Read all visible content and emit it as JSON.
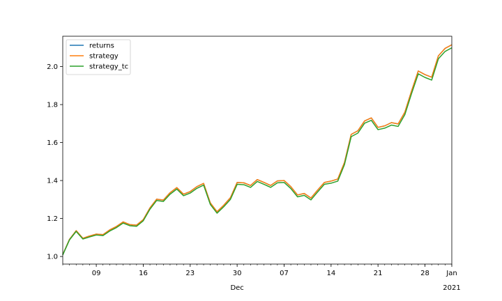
{
  "chart_data": {
    "type": "line",
    "title": "",
    "xlabel": "",
    "ylabel": "",
    "x_start": "2020-11-04",
    "x_end": "2021-01-01",
    "xlim": [
      "2020-11-04",
      "2021-01-01"
    ],
    "ylim": [
      0.96,
      2.16
    ],
    "grid": false,
    "legend_position": "top-left",
    "x_ticks": [
      {
        "date": "2020-11-09",
        "label": "09",
        "sublabel": ""
      },
      {
        "date": "2020-11-16",
        "label": "16",
        "sublabel": ""
      },
      {
        "date": "2020-11-23",
        "label": "23",
        "sublabel": ""
      },
      {
        "date": "2020-11-30",
        "label": "30",
        "sublabel": "Dec"
      },
      {
        "date": "2020-12-07",
        "label": "07",
        "sublabel": ""
      },
      {
        "date": "2020-12-14",
        "label": "14",
        "sublabel": ""
      },
      {
        "date": "2020-12-21",
        "label": "21",
        "sublabel": ""
      },
      {
        "date": "2020-12-28",
        "label": "28",
        "sublabel": ""
      },
      {
        "date": "2021-01-01",
        "label": "Jan",
        "sublabel": "2021"
      }
    ],
    "y_ticks": [
      1.0,
      1.2,
      1.4,
      1.6,
      1.8,
      2.0
    ],
    "dates": [
      "2020-11-04",
      "2020-11-05",
      "2020-11-06",
      "2020-11-07",
      "2020-11-08",
      "2020-11-09",
      "2020-11-10",
      "2020-11-11",
      "2020-11-12",
      "2020-11-13",
      "2020-11-14",
      "2020-11-15",
      "2020-11-16",
      "2020-11-17",
      "2020-11-18",
      "2020-11-19",
      "2020-11-20",
      "2020-11-21",
      "2020-11-22",
      "2020-11-23",
      "2020-11-24",
      "2020-11-25",
      "2020-11-26",
      "2020-11-27",
      "2020-11-28",
      "2020-11-29",
      "2020-11-30",
      "2020-12-01",
      "2020-12-02",
      "2020-12-03",
      "2020-12-04",
      "2020-12-05",
      "2020-12-06",
      "2020-12-07",
      "2020-12-08",
      "2020-12-09",
      "2020-12-10",
      "2020-12-11",
      "2020-12-12",
      "2020-12-13",
      "2020-12-14",
      "2020-12-15",
      "2020-12-16",
      "2020-12-17",
      "2020-12-18",
      "2020-12-19",
      "2020-12-20",
      "2020-12-21",
      "2020-12-22",
      "2020-12-23",
      "2020-12-24",
      "2020-12-25",
      "2020-12-26",
      "2020-12-27",
      "2020-12-28",
      "2020-12-29",
      "2020-12-30",
      "2020-12-31",
      "2021-01-01"
    ],
    "series": [
      {
        "name": "returns",
        "color": "#1f77b4",
        "values": [
          1.01,
          1.09,
          1.136,
          1.096,
          1.108,
          1.118,
          1.115,
          1.14,
          1.158,
          1.182,
          1.168,
          1.165,
          1.194,
          1.256,
          1.302,
          1.297,
          1.336,
          1.363,
          1.328,
          1.342,
          1.368,
          1.385,
          1.282,
          1.236,
          1.27,
          1.31,
          1.39,
          1.388,
          1.374,
          1.405,
          1.39,
          1.374,
          1.398,
          1.4,
          1.368,
          1.324,
          1.332,
          1.308,
          1.35,
          1.39,
          1.397,
          1.408,
          1.495,
          1.643,
          1.662,
          1.714,
          1.73,
          1.68,
          1.688,
          1.705,
          1.698,
          1.76,
          1.872,
          1.977,
          1.958,
          1.944,
          2.057,
          2.096,
          2.115
        ]
      },
      {
        "name": "strategy",
        "color": "#ff7f0e",
        "values": [
          1.01,
          1.09,
          1.136,
          1.096,
          1.108,
          1.118,
          1.115,
          1.14,
          1.158,
          1.182,
          1.168,
          1.165,
          1.194,
          1.256,
          1.302,
          1.297,
          1.336,
          1.363,
          1.328,
          1.342,
          1.368,
          1.385,
          1.282,
          1.236,
          1.27,
          1.31,
          1.39,
          1.388,
          1.374,
          1.405,
          1.39,
          1.374,
          1.398,
          1.4,
          1.368,
          1.324,
          1.332,
          1.308,
          1.35,
          1.39,
          1.397,
          1.408,
          1.495,
          1.643,
          1.662,
          1.714,
          1.73,
          1.68,
          1.688,
          1.705,
          1.698,
          1.76,
          1.872,
          1.977,
          1.958,
          1.944,
          2.057,
          2.096,
          2.115
        ]
      },
      {
        "name": "strategy_tc",
        "color": "#2ca02c",
        "values": [
          1.008,
          1.087,
          1.132,
          1.092,
          1.103,
          1.113,
          1.11,
          1.134,
          1.152,
          1.176,
          1.162,
          1.159,
          1.188,
          1.249,
          1.295,
          1.29,
          1.328,
          1.355,
          1.32,
          1.334,
          1.359,
          1.376,
          1.274,
          1.228,
          1.262,
          1.301,
          1.38,
          1.378,
          1.364,
          1.395,
          1.38,
          1.364,
          1.388,
          1.39,
          1.358,
          1.314,
          1.322,
          1.298,
          1.34,
          1.38,
          1.386,
          1.397,
          1.484,
          1.631,
          1.65,
          1.702,
          1.717,
          1.668,
          1.676,
          1.692,
          1.685,
          1.747,
          1.858,
          1.962,
          1.943,
          1.929,
          2.041,
          2.08,
          2.099
        ]
      }
    ]
  }
}
